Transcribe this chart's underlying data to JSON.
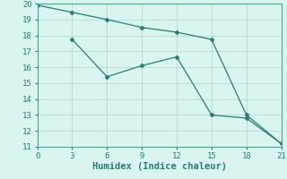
{
  "xlabel": "Humidex (Indice chaleur)",
  "line1_x": [
    0,
    3,
    6,
    9,
    12,
    15,
    18,
    21
  ],
  "line1_y": [
    19.9,
    19.45,
    19.0,
    18.5,
    18.2,
    17.75,
    13.0,
    11.2
  ],
  "line2_x": [
    3,
    6,
    9,
    12,
    15,
    18,
    21
  ],
  "line2_y": [
    17.75,
    15.4,
    16.1,
    16.65,
    13.0,
    12.8,
    11.2
  ],
  "line_color": "#2a7d6e",
  "marker": "D",
  "marker_size": 2.5,
  "bg_color": "#d8f5f0",
  "grid_color": "#b8d8d4",
  "ylim": [
    11,
    20
  ],
  "xlim": [
    0,
    21
  ],
  "yticks": [
    11,
    12,
    13,
    14,
    15,
    16,
    17,
    18,
    19,
    20
  ],
  "xticks": [
    0,
    3,
    6,
    9,
    12,
    15,
    18,
    21
  ],
  "tick_fontsize": 6.5,
  "xlabel_fontsize": 7.5
}
